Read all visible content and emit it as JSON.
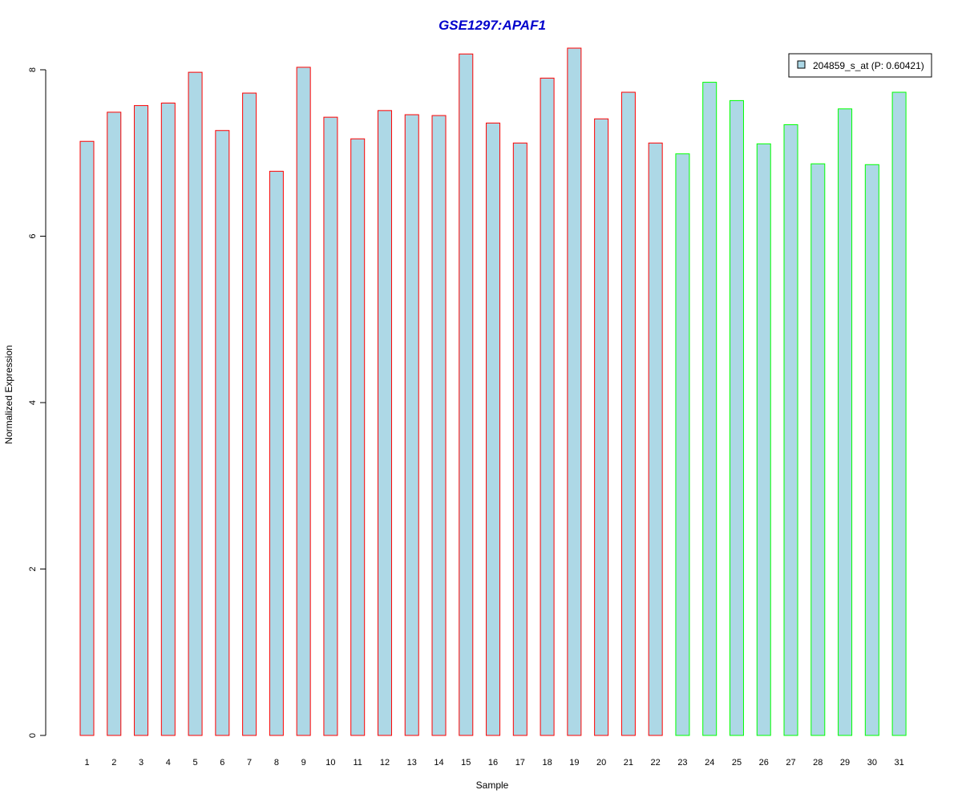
{
  "chart_data": {
    "type": "bar",
    "title": "GSE1297:APAF1",
    "xlabel": "Sample",
    "ylabel": "Normalized Expression",
    "ylim": [
      0,
      8.3
    ],
    "yticks": [
      "0",
      "2",
      "4",
      "6",
      "8"
    ],
    "categories": [
      "1",
      "2",
      "3",
      "4",
      "5",
      "6",
      "7",
      "8",
      "9",
      "10",
      "11",
      "12",
      "13",
      "14",
      "15",
      "16",
      "17",
      "18",
      "19",
      "20",
      "21",
      "22",
      "23",
      "24",
      "25",
      "26",
      "27",
      "28",
      "29",
      "30",
      "31"
    ],
    "values": [
      7.14,
      7.49,
      7.57,
      7.6,
      7.97,
      7.27,
      7.72,
      6.78,
      8.03,
      7.43,
      7.17,
      7.51,
      7.46,
      7.45,
      8.19,
      7.36,
      7.12,
      7.9,
      8.26,
      7.41,
      7.73,
      7.12,
      6.99,
      7.85,
      7.63,
      7.11,
      7.34,
      6.87,
      7.53,
      6.86,
      7.73
    ],
    "group_border_colors": [
      "#ff0000",
      "#ff0000",
      "#ff0000",
      "#ff0000",
      "#ff0000",
      "#ff0000",
      "#ff0000",
      "#ff0000",
      "#ff0000",
      "#ff0000",
      "#ff0000",
      "#ff0000",
      "#ff0000",
      "#ff0000",
      "#ff0000",
      "#ff0000",
      "#ff0000",
      "#ff0000",
      "#ff0000",
      "#ff0000",
      "#ff0000",
      "#ff0000",
      "#00ff00",
      "#00ff00",
      "#00ff00",
      "#00ff00",
      "#00ff00",
      "#00ff00",
      "#00ff00",
      "#00ff00",
      "#00ff00"
    ],
    "bar_fill": "#add8e6",
    "title_color": "#0000cc",
    "legend": {
      "label": "204859_s_at (P: 0.60421)",
      "placement": "top-right"
    },
    "grid": false
  }
}
